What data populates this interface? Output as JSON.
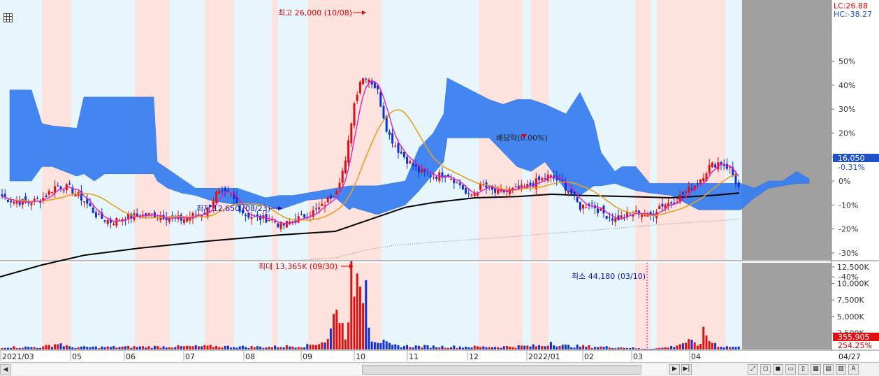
{
  "chart_data": {
    "type": "candlestick",
    "header": {
      "lc": "LC:26.88",
      "hc": "HC:-38.27"
    },
    "y_axis_percent_ticks": [
      "50%",
      "40%",
      "30%",
      "20%",
      "10%",
      "0%",
      "-10%",
      "-20%",
      "-30%",
      "-40%"
    ],
    "volume_axis_ticks": [
      "12,500K",
      "10,000K",
      "7,500K",
      "5,000K",
      "2,500K"
    ],
    "current_price": "16,050",
    "current_change": "-0.31%",
    "current_volume": "355,905",
    "volume_ratio": "254.25%",
    "x_axis_labels": [
      "2021/03",
      "05",
      "06",
      "07",
      "08",
      "09",
      "10",
      "11",
      "12",
      "2022/01",
      "02",
      "03",
      "04"
    ],
    "x_axis_right_label": "04/27",
    "annotations": {
      "high": "최고 26,000 (10/08)",
      "low": "최저 12,650 (08/23)",
      "dividend": "배당락(0.00%)",
      "volume_max": "최대 13,365K (09/30)",
      "volume_min": "최소 44,180 (03/10)"
    },
    "colors": {
      "up": "#e01010",
      "down": "#1030d0",
      "cloud": "#3a7ff0",
      "ma_short": "#e020c0",
      "ma_mid": "#e8a020",
      "ma_long": "#000000",
      "band_light": "#e6f6fc",
      "band_pink": "#fde2de",
      "right_gray": "#a0a0a0"
    }
  },
  "toolbar": {
    "grid_icon": "grid-icon",
    "right_buttons": [
      "▶",
      "▶|",
      "⤢",
      "◻",
      "◼",
      "▭",
      "▯",
      "▦",
      "▤",
      "▥",
      "A"
    ]
  }
}
